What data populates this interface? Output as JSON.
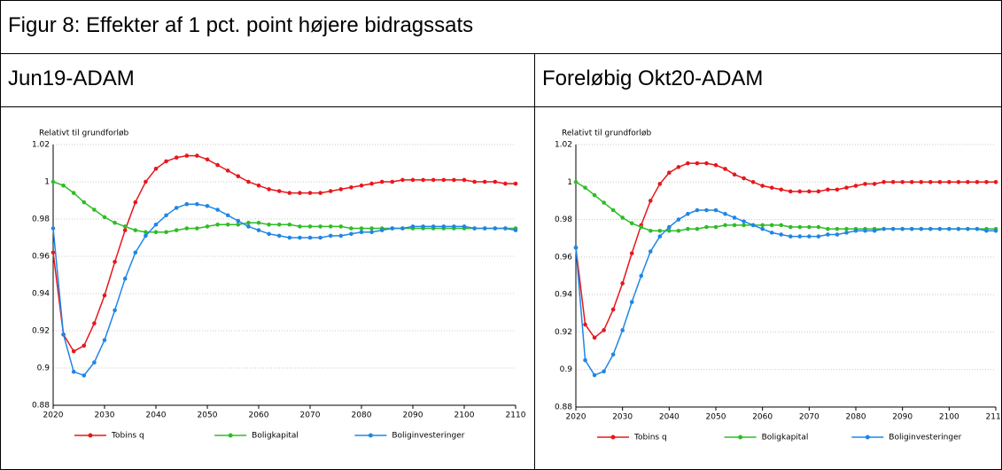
{
  "title": "Figur 8: Effekter af 1 pct. point højere bidragssats",
  "chart_data": [
    {
      "type": "line",
      "panel_title": "Jun19-ADAM",
      "ylabel": "Relativt til grundforløb",
      "x": [
        2020,
        2022,
        2024,
        2026,
        2028,
        2030,
        2032,
        2034,
        2036,
        2038,
        2040,
        2042,
        2044,
        2046,
        2048,
        2050,
        2052,
        2054,
        2056,
        2058,
        2060,
        2062,
        2064,
        2066,
        2068,
        2070,
        2072,
        2074,
        2076,
        2078,
        2080,
        2082,
        2084,
        2086,
        2088,
        2090,
        2092,
        2094,
        2096,
        2098,
        2100,
        2102,
        2104,
        2106,
        2108,
        2110
      ],
      "xlim": [
        2020,
        2110
      ],
      "xticks": [
        2020,
        2030,
        2040,
        2050,
        2060,
        2070,
        2080,
        2090,
        2100,
        2110
      ],
      "ylim": [
        0.88,
        1.02
      ],
      "yticks": [
        0.88,
        0.9,
        0.92,
        0.94,
        0.96,
        0.98,
        1,
        1.02
      ],
      "grid": true,
      "series": [
        {
          "name": "Tobins q",
          "color": "#e8161b",
          "values": [
            0.962,
            0.918,
            0.909,
            0.912,
            0.924,
            0.939,
            0.957,
            0.974,
            0.989,
            1.0,
            1.007,
            1.011,
            1.013,
            1.014,
            1.014,
            1.012,
            1.009,
            1.006,
            1.003,
            1.0,
            0.998,
            0.996,
            0.995,
            0.994,
            0.994,
            0.994,
            0.994,
            0.995,
            0.996,
            0.997,
            0.998,
            0.999,
            1.0,
            1.0,
            1.001,
            1.001,
            1.001,
            1.001,
            1.001,
            1.001,
            1.001,
            1.0,
            1.0,
            1.0,
            0.999,
            0.999
          ]
        },
        {
          "name": "Boligkapital",
          "color": "#2ebd26",
          "values": [
            1.0,
            0.998,
            0.994,
            0.989,
            0.985,
            0.981,
            0.978,
            0.976,
            0.974,
            0.973,
            0.973,
            0.973,
            0.974,
            0.975,
            0.975,
            0.976,
            0.977,
            0.977,
            0.977,
            0.978,
            0.978,
            0.977,
            0.977,
            0.977,
            0.976,
            0.976,
            0.976,
            0.976,
            0.976,
            0.975,
            0.975,
            0.975,
            0.975,
            0.975,
            0.975,
            0.975,
            0.975,
            0.975,
            0.975,
            0.975,
            0.975,
            0.975,
            0.975,
            0.975,
            0.975,
            0.975
          ]
        },
        {
          "name": "Boliginvesteringer",
          "color": "#1f86e6",
          "values": [
            0.975,
            0.918,
            0.898,
            0.896,
            0.903,
            0.915,
            0.931,
            0.948,
            0.962,
            0.971,
            0.977,
            0.982,
            0.986,
            0.988,
            0.988,
            0.987,
            0.985,
            0.982,
            0.979,
            0.976,
            0.974,
            0.972,
            0.971,
            0.97,
            0.97,
            0.97,
            0.97,
            0.971,
            0.971,
            0.972,
            0.973,
            0.973,
            0.974,
            0.975,
            0.975,
            0.976,
            0.976,
            0.976,
            0.976,
            0.976,
            0.976,
            0.975,
            0.975,
            0.975,
            0.975,
            0.974
          ]
        }
      ]
    },
    {
      "type": "line",
      "panel_title": "Foreløbig Okt20-ADAM",
      "ylabel": "Relativt til grundforløb",
      "x": [
        2020,
        2022,
        2024,
        2026,
        2028,
        2030,
        2032,
        2034,
        2036,
        2038,
        2040,
        2042,
        2044,
        2046,
        2048,
        2050,
        2052,
        2054,
        2056,
        2058,
        2060,
        2062,
        2064,
        2066,
        2068,
        2070,
        2072,
        2074,
        2076,
        2078,
        2080,
        2082,
        2084,
        2086,
        2088,
        2090,
        2092,
        2094,
        2096,
        2098,
        2100,
        2102,
        2104,
        2106,
        2108,
        2110
      ],
      "xlim": [
        2020,
        2110
      ],
      "xticks": [
        2020,
        2030,
        2040,
        2050,
        2060,
        2070,
        2080,
        2090,
        2100,
        2110
      ],
      "ylim": [
        0.88,
        1.02
      ],
      "yticks": [
        0.88,
        0.9,
        0.92,
        0.94,
        0.96,
        0.98,
        1,
        1.02
      ],
      "grid": true,
      "series": [
        {
          "name": "Tobins q",
          "color": "#e8161b",
          "values": [
            0.965,
            0.924,
            0.917,
            0.921,
            0.932,
            0.946,
            0.962,
            0.977,
            0.99,
            0.999,
            1.005,
            1.008,
            1.01,
            1.01,
            1.01,
            1.009,
            1.007,
            1.004,
            1.002,
            1.0,
            0.998,
            0.997,
            0.996,
            0.995,
            0.995,
            0.995,
            0.995,
            0.996,
            0.996,
            0.997,
            0.998,
            0.999,
            0.999,
            1.0,
            1.0,
            1.0,
            1.0,
            1.0,
            1.0,
            1.0,
            1.0,
            1.0,
            1.0,
            1.0,
            1.0,
            1.0
          ]
        },
        {
          "name": "Boligkapital",
          "color": "#2ebd26",
          "values": [
            1.0,
            0.997,
            0.993,
            0.989,
            0.985,
            0.981,
            0.978,
            0.976,
            0.974,
            0.974,
            0.974,
            0.974,
            0.975,
            0.975,
            0.976,
            0.976,
            0.977,
            0.977,
            0.977,
            0.977,
            0.977,
            0.977,
            0.977,
            0.976,
            0.976,
            0.976,
            0.976,
            0.975,
            0.975,
            0.975,
            0.975,
            0.975,
            0.975,
            0.975,
            0.975,
            0.975,
            0.975,
            0.975,
            0.975,
            0.975,
            0.975,
            0.975,
            0.975,
            0.975,
            0.975,
            0.975
          ]
        },
        {
          "name": "Boliginvesteringer",
          "color": "#1f86e6",
          "values": [
            0.965,
            0.905,
            0.897,
            0.899,
            0.908,
            0.921,
            0.936,
            0.95,
            0.963,
            0.971,
            0.976,
            0.98,
            0.983,
            0.985,
            0.985,
            0.985,
            0.983,
            0.981,
            0.979,
            0.977,
            0.975,
            0.973,
            0.972,
            0.971,
            0.971,
            0.971,
            0.971,
            0.972,
            0.972,
            0.973,
            0.974,
            0.974,
            0.974,
            0.975,
            0.975,
            0.975,
            0.975,
            0.975,
            0.975,
            0.975,
            0.975,
            0.975,
            0.975,
            0.975,
            0.974,
            0.974
          ]
        }
      ]
    }
  ]
}
